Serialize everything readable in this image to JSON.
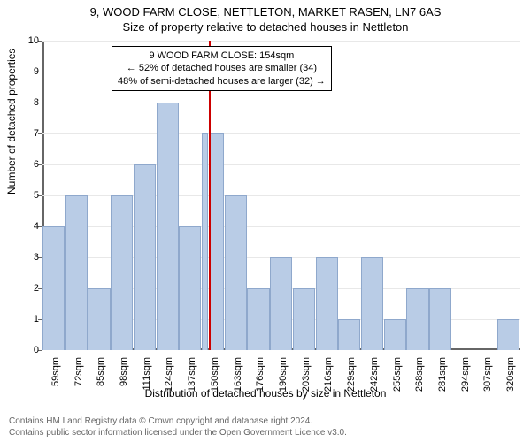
{
  "title": "9, WOOD FARM CLOSE, NETTLETON, MARKET RASEN, LN7 6AS",
  "subtitle": "Size of property relative to detached houses in Nettleton",
  "chart": {
    "type": "histogram",
    "y_label": "Number of detached properties",
    "x_label": "Distribution of detached houses by size in Nettleton",
    "ylim": [
      0,
      10
    ],
    "ytick_step": 1,
    "bar_color": "#b9cce6",
    "bar_border": "#8fa8cc",
    "grid_color": "#e8e8e8",
    "ref_line_color": "#cc0000",
    "ref_line_x_category": "150sqm",
    "x_categories": [
      "59sqm",
      "72sqm",
      "85sqm",
      "98sqm",
      "111sqm",
      "124sqm",
      "137sqm",
      "150sqm",
      "163sqm",
      "176sqm",
      "190sqm",
      "203sqm",
      "216sqm",
      "229sqm",
      "242sqm",
      "255sqm",
      "268sqm",
      "281sqm",
      "294sqm",
      "307sqm",
      "320sqm"
    ],
    "bars": [
      {
        "x_offset": 0.0,
        "w": 1.0,
        "h": 4
      },
      {
        "x_offset": 1.0,
        "w": 1.0,
        "h": 5
      },
      {
        "x_offset": 2.0,
        "w": 1.0,
        "h": 2
      },
      {
        "x_offset": 3.0,
        "w": 1.0,
        "h": 5
      },
      {
        "x_offset": 4.0,
        "w": 1.0,
        "h": 6
      },
      {
        "x_offset": 5.0,
        "w": 1.0,
        "h": 8
      },
      {
        "x_offset": 6.0,
        "w": 1.0,
        "h": 4
      },
      {
        "x_offset": 7.0,
        "w": 0.3,
        "h": 7
      },
      {
        "x_offset": 7.3,
        "w": 0.7,
        "h": 7
      },
      {
        "x_offset": 8.0,
        "w": 1.0,
        "h": 5
      },
      {
        "x_offset": 9.0,
        "w": 1.0,
        "h": 2
      },
      {
        "x_offset": 10.0,
        "w": 1.0,
        "h": 3
      },
      {
        "x_offset": 11.0,
        "w": 1.0,
        "h": 2
      },
      {
        "x_offset": 12.0,
        "w": 1.0,
        "h": 3
      },
      {
        "x_offset": 13.0,
        "w": 1.0,
        "h": 1
      },
      {
        "x_offset": 14.0,
        "w": 1.0,
        "h": 3
      },
      {
        "x_offset": 15.0,
        "w": 1.0,
        "h": 1
      },
      {
        "x_offset": 16.0,
        "w": 1.0,
        "h": 2
      },
      {
        "x_offset": 17.0,
        "w": 1.0,
        "h": 2
      },
      {
        "x_offset": 20.0,
        "w": 1.0,
        "h": 1
      }
    ],
    "annotation": {
      "line1": "9 WOOD FARM CLOSE: 154sqm",
      "line2": "← 52% of detached houses are smaller (34)",
      "line3": "48% of semi-detached houses are larger (32) →"
    }
  },
  "footer": {
    "line1": "Contains HM Land Registry data © Crown copyright and database right 2024.",
    "line2": "Contains public sector information licensed under the Open Government Licence v3.0."
  }
}
